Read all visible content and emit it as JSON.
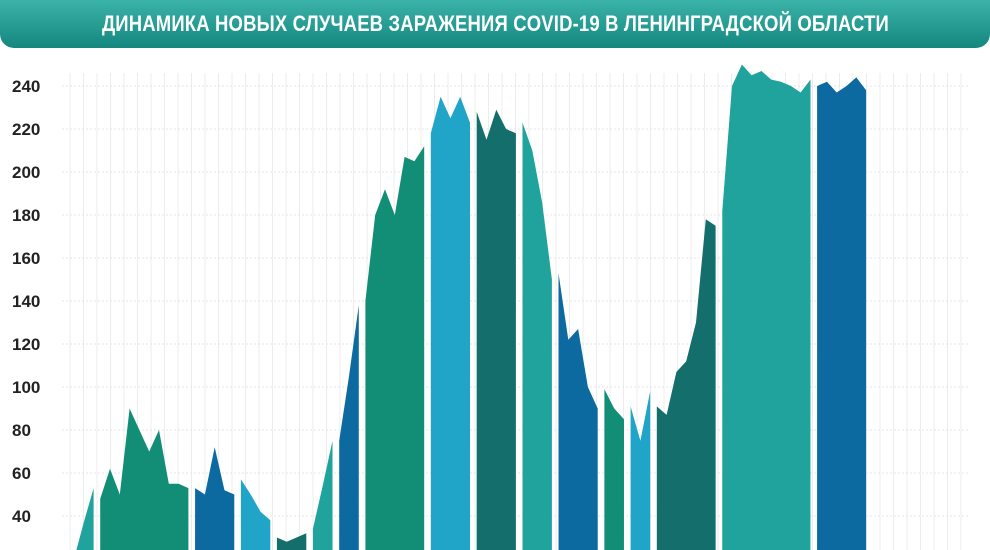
{
  "header": {
    "title": "ДИНАМИКА НОВЫХ СЛУЧАЕВ ЗАРАЖЕНИЯ COVID-19 В ЛЕНИНГРАДСКОЙ ОБЛАСТИ"
  },
  "colors": {
    "title_bar_top": "#3bb3a8",
    "title_bar_bottom": "#14877f",
    "palette": [
      "#20a39c",
      "#138e76",
      "#0d6aa0",
      "#20a5c8",
      "#146e6b"
    ]
  },
  "chart_data": {
    "type": "area",
    "title": "ДИНАМИКА НОВЫХ СЛУЧАЕВ ЗАРАЖЕНИЯ COVID-19 В ЛЕНИНГРАДСКОЙ ОБЛАСТИ",
    "xlabel": "",
    "ylabel": "",
    "ylim": [
      20,
      252
    ],
    "y_ticks": [
      40,
      60,
      80,
      100,
      120,
      140,
      160,
      180,
      200,
      220,
      240
    ],
    "grid": true,
    "segments": [
      {
        "color": "#20a39c",
        "values": [
          20,
          37,
          53
        ]
      },
      {
        "color": "#138e76",
        "values": [
          48,
          62,
          50,
          90,
          80,
          70,
          80,
          55,
          55,
          53
        ]
      },
      {
        "color": "#0d6aa0",
        "values": [
          53,
          50,
          72,
          52,
          50
        ]
      },
      {
        "color": "#20a5c8",
        "values": [
          57,
          50,
          42,
          38
        ]
      },
      {
        "color": "#146e6b",
        "values": [
          30,
          28,
          30,
          32
        ]
      },
      {
        "color": "#20a39c",
        "values": [
          34,
          54,
          75
        ]
      },
      {
        "color": "#0d6aa0",
        "values": [
          75,
          105,
          138
        ]
      },
      {
        "color": "#138e76",
        "values": [
          140,
          180,
          192,
          180,
          207,
          205,
          212
        ]
      },
      {
        "color": "#20a5c8",
        "values": [
          218,
          235,
          225,
          235,
          223
        ]
      },
      {
        "color": "#146e6b",
        "values": [
          228,
          215,
          229,
          220,
          218
        ]
      },
      {
        "color": "#20a39c",
        "values": [
          223,
          210,
          186,
          150
        ]
      },
      {
        "color": "#0d6aa0",
        "values": [
          153,
          122,
          127,
          100,
          90
        ]
      },
      {
        "color": "#138e76",
        "values": [
          99,
          90,
          85
        ]
      },
      {
        "color": "#20a5c8",
        "values": [
          91,
          75,
          98
        ]
      },
      {
        "color": "#146e6b",
        "values": [
          91,
          87,
          107,
          112,
          130,
          178,
          175
        ]
      },
      {
        "color": "#20a39c",
        "values": [
          182,
          240,
          250,
          245,
          247,
          243,
          242,
          240,
          237,
          243
        ]
      },
      {
        "color": "#0d6aa0",
        "values": [
          240,
          242,
          237,
          240,
          244,
          238
        ]
      }
    ]
  }
}
